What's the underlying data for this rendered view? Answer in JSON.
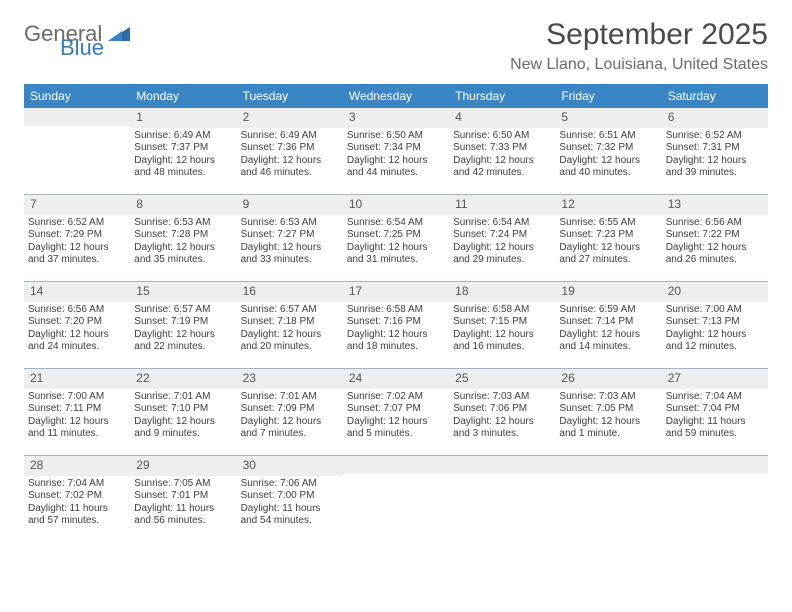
{
  "brand": {
    "word1": "General",
    "word2": "Blue"
  },
  "title": "September 2025",
  "location": "New Llano, Louisiana, United States",
  "colors": {
    "header_bg": "#3a85c4",
    "header_text": "#ffffff",
    "daynum_bg": "#eceeef",
    "border": "#9db6c9",
    "text": "#3d3d3d",
    "title": "#4a4a4a",
    "subtitle": "#6a6a6a",
    "logo_gray": "#6b6b6b",
    "logo_blue": "#3a7ab5"
  },
  "day_labels": [
    "Sunday",
    "Monday",
    "Tuesday",
    "Wednesday",
    "Thursday",
    "Friday",
    "Saturday"
  ],
  "weeks": [
    [
      {
        "num": "",
        "lines": []
      },
      {
        "num": "1",
        "lines": [
          "Sunrise: 6:49 AM",
          "Sunset: 7:37 PM",
          "Daylight: 12 hours",
          "and 48 minutes."
        ]
      },
      {
        "num": "2",
        "lines": [
          "Sunrise: 6:49 AM",
          "Sunset: 7:36 PM",
          "Daylight: 12 hours",
          "and 46 minutes."
        ]
      },
      {
        "num": "3",
        "lines": [
          "Sunrise: 6:50 AM",
          "Sunset: 7:34 PM",
          "Daylight: 12 hours",
          "and 44 minutes."
        ]
      },
      {
        "num": "4",
        "lines": [
          "Sunrise: 6:50 AM",
          "Sunset: 7:33 PM",
          "Daylight: 12 hours",
          "and 42 minutes."
        ]
      },
      {
        "num": "5",
        "lines": [
          "Sunrise: 6:51 AM",
          "Sunset: 7:32 PM",
          "Daylight: 12 hours",
          "and 40 minutes."
        ]
      },
      {
        "num": "6",
        "lines": [
          "Sunrise: 6:52 AM",
          "Sunset: 7:31 PM",
          "Daylight: 12 hours",
          "and 39 minutes."
        ]
      }
    ],
    [
      {
        "num": "7",
        "lines": [
          "Sunrise: 6:52 AM",
          "Sunset: 7:29 PM",
          "Daylight: 12 hours",
          "and 37 minutes."
        ]
      },
      {
        "num": "8",
        "lines": [
          "Sunrise: 6:53 AM",
          "Sunset: 7:28 PM",
          "Daylight: 12 hours",
          "and 35 minutes."
        ]
      },
      {
        "num": "9",
        "lines": [
          "Sunrise: 6:53 AM",
          "Sunset: 7:27 PM",
          "Daylight: 12 hours",
          "and 33 minutes."
        ]
      },
      {
        "num": "10",
        "lines": [
          "Sunrise: 6:54 AM",
          "Sunset: 7:25 PM",
          "Daylight: 12 hours",
          "and 31 minutes."
        ]
      },
      {
        "num": "11",
        "lines": [
          "Sunrise: 6:54 AM",
          "Sunset: 7:24 PM",
          "Daylight: 12 hours",
          "and 29 minutes."
        ]
      },
      {
        "num": "12",
        "lines": [
          "Sunrise: 6:55 AM",
          "Sunset: 7:23 PM",
          "Daylight: 12 hours",
          "and 27 minutes."
        ]
      },
      {
        "num": "13",
        "lines": [
          "Sunrise: 6:56 AM",
          "Sunset: 7:22 PM",
          "Daylight: 12 hours",
          "and 26 minutes."
        ]
      }
    ],
    [
      {
        "num": "14",
        "lines": [
          "Sunrise: 6:56 AM",
          "Sunset: 7:20 PM",
          "Daylight: 12 hours",
          "and 24 minutes."
        ]
      },
      {
        "num": "15",
        "lines": [
          "Sunrise: 6:57 AM",
          "Sunset: 7:19 PM",
          "Daylight: 12 hours",
          "and 22 minutes."
        ]
      },
      {
        "num": "16",
        "lines": [
          "Sunrise: 6:57 AM",
          "Sunset: 7:18 PM",
          "Daylight: 12 hours",
          "and 20 minutes."
        ]
      },
      {
        "num": "17",
        "lines": [
          "Sunrise: 6:58 AM",
          "Sunset: 7:16 PM",
          "Daylight: 12 hours",
          "and 18 minutes."
        ]
      },
      {
        "num": "18",
        "lines": [
          "Sunrise: 6:58 AM",
          "Sunset: 7:15 PM",
          "Daylight: 12 hours",
          "and 16 minutes."
        ]
      },
      {
        "num": "19",
        "lines": [
          "Sunrise: 6:59 AM",
          "Sunset: 7:14 PM",
          "Daylight: 12 hours",
          "and 14 minutes."
        ]
      },
      {
        "num": "20",
        "lines": [
          "Sunrise: 7:00 AM",
          "Sunset: 7:13 PM",
          "Daylight: 12 hours",
          "and 12 minutes."
        ]
      }
    ],
    [
      {
        "num": "21",
        "lines": [
          "Sunrise: 7:00 AM",
          "Sunset: 7:11 PM",
          "Daylight: 12 hours",
          "and 11 minutes."
        ]
      },
      {
        "num": "22",
        "lines": [
          "Sunrise: 7:01 AM",
          "Sunset: 7:10 PM",
          "Daylight: 12 hours",
          "and 9 minutes."
        ]
      },
      {
        "num": "23",
        "lines": [
          "Sunrise: 7:01 AM",
          "Sunset: 7:09 PM",
          "Daylight: 12 hours",
          "and 7 minutes."
        ]
      },
      {
        "num": "24",
        "lines": [
          "Sunrise: 7:02 AM",
          "Sunset: 7:07 PM",
          "Daylight: 12 hours",
          "and 5 minutes."
        ]
      },
      {
        "num": "25",
        "lines": [
          "Sunrise: 7:03 AM",
          "Sunset: 7:06 PM",
          "Daylight: 12 hours",
          "and 3 minutes."
        ]
      },
      {
        "num": "26",
        "lines": [
          "Sunrise: 7:03 AM",
          "Sunset: 7:05 PM",
          "Daylight: 12 hours",
          "and 1 minute."
        ]
      },
      {
        "num": "27",
        "lines": [
          "Sunrise: 7:04 AM",
          "Sunset: 7:04 PM",
          "Daylight: 11 hours",
          "and 59 minutes."
        ]
      }
    ],
    [
      {
        "num": "28",
        "lines": [
          "Sunrise: 7:04 AM",
          "Sunset: 7:02 PM",
          "Daylight: 11 hours",
          "and 57 minutes."
        ]
      },
      {
        "num": "29",
        "lines": [
          "Sunrise: 7:05 AM",
          "Sunset: 7:01 PM",
          "Daylight: 11 hours",
          "and 56 minutes."
        ]
      },
      {
        "num": "30",
        "lines": [
          "Sunrise: 7:06 AM",
          "Sunset: 7:00 PM",
          "Daylight: 11 hours",
          "and 54 minutes."
        ]
      },
      {
        "num": "",
        "lines": []
      },
      {
        "num": "",
        "lines": []
      },
      {
        "num": "",
        "lines": []
      },
      {
        "num": "",
        "lines": []
      }
    ]
  ]
}
